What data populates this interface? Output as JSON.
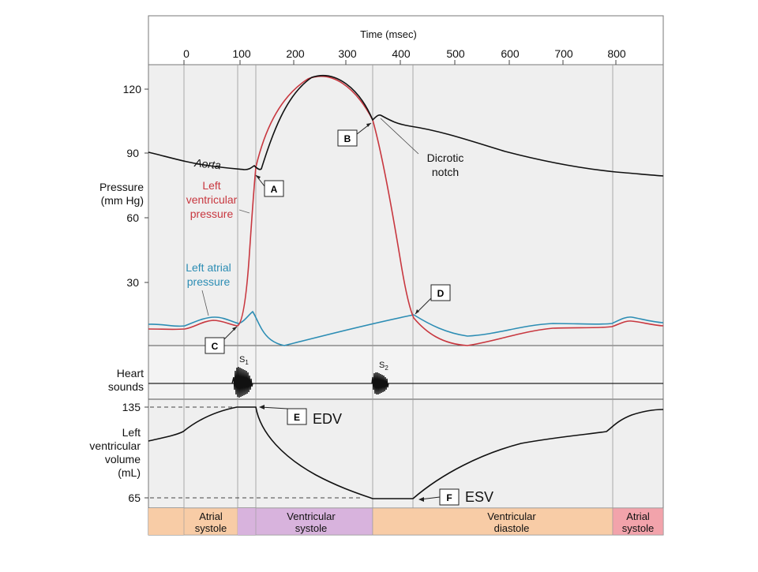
{
  "header": {
    "x_axis_title": "Time (msec)",
    "x_ticks": [
      "0",
      "100",
      "200",
      "300",
      "400",
      "500",
      "600",
      "700",
      "800"
    ]
  },
  "pressure_panel": {
    "y_title_line1": "Pressure",
    "y_title_line2": "(mm Hg)",
    "y_ticks": [
      "120",
      "90",
      "60",
      "30"
    ],
    "aorta_label": "Aorta",
    "lvp_label_line1": "Left",
    "lvp_label_line2": "ventricular",
    "lvp_label_line3": "pressure",
    "lap_label_line1": "Left atrial",
    "lap_label_line2": "pressure",
    "dicrotic_line1": "Dicrotic",
    "dicrotic_line2": "notch",
    "box_a": "A",
    "box_b": "B",
    "box_c": "C",
    "box_d": "D"
  },
  "sounds_panel": {
    "label_line1": "Heart",
    "label_line2": "sounds",
    "s1": "S",
    "s1_sub": "1",
    "s2": "S",
    "s2_sub": "2"
  },
  "volume_panel": {
    "y_title_line1": "Left",
    "y_title_line2": "ventricular",
    "y_title_line3": "volume",
    "y_title_line4": "(mL)",
    "tick_high": "135",
    "tick_low": "65",
    "box_e": "E",
    "box_f": "F",
    "edv_label": "EDV",
    "esv_label": "ESV"
  },
  "phases": [
    {
      "line1": "Atrial",
      "line2": "systole",
      "color": "#f8cca6"
    },
    {
      "line1": "Ventricular",
      "line2": "systole",
      "color": "#d8b3dd"
    },
    {
      "line1": "Ventricular",
      "line2": "diastole",
      "color": "#f8cca6"
    },
    {
      "line1": "Atrial",
      "line2": "systole",
      "color": "#f2a3ab"
    }
  ],
  "colors": {
    "aorta": "#111111",
    "left_ventricular_pressure": "#c8373f",
    "left_atrial_pressure": "#2c8db4",
    "panel_background": "#eeeeee",
    "phase_peach": "#f8cca6",
    "phase_lavender": "#d8b3dd",
    "phase_pink": "#f2a3ab"
  }
}
